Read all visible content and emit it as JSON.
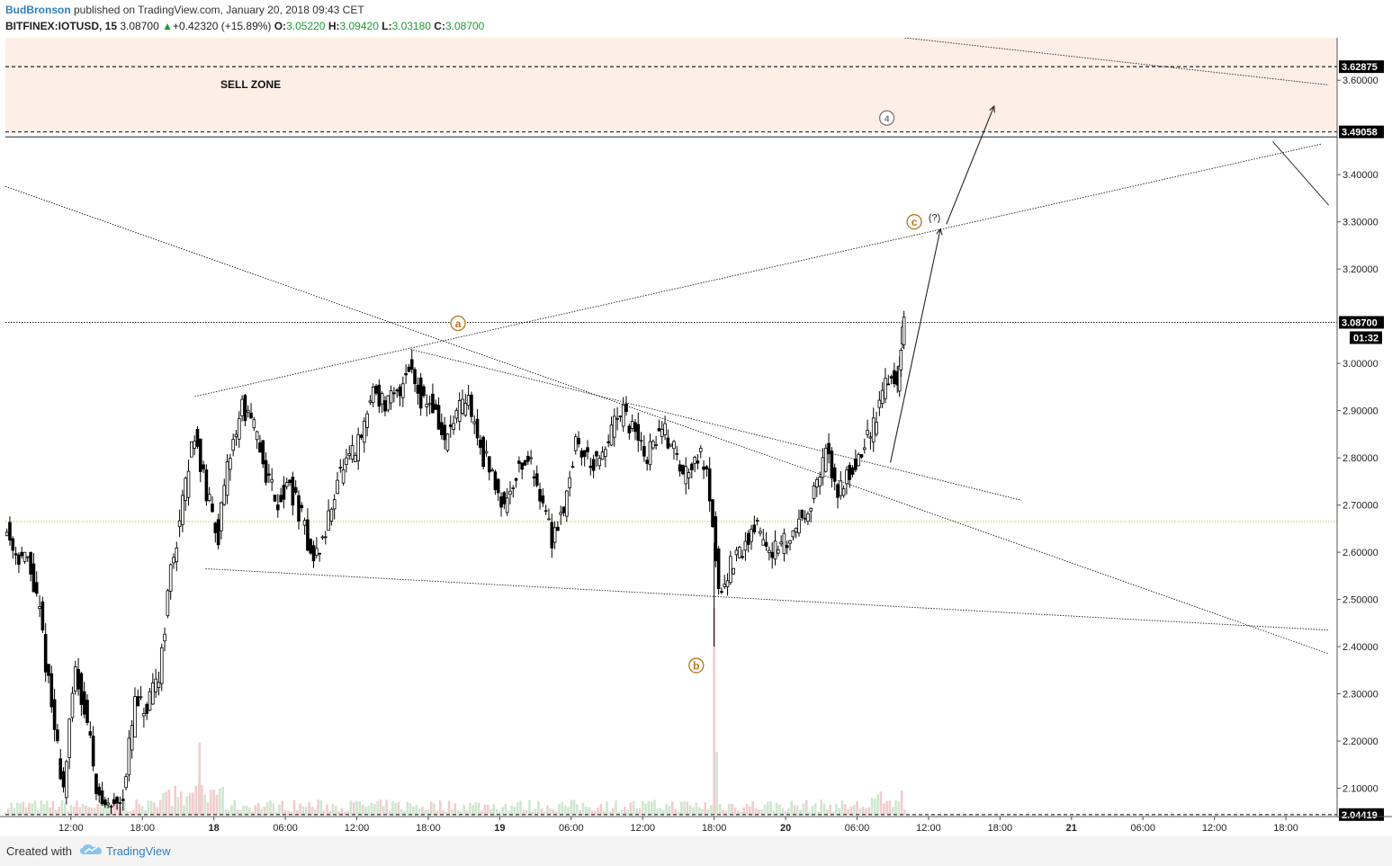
{
  "header": {
    "author": "BudBronson",
    "published": "published on TradingView.com, January 20, 2018 09:43 CET",
    "symbol": "BITFINEX:IOTUSD, 15",
    "last": "3.08700",
    "change_arrow": "▲",
    "change": "+0.42320 (+15.89%)",
    "o_label": "O:",
    "o_value": "3.05220",
    "h_label": "H:",
    "h_value": "3.09420",
    "l_label": "L:",
    "l_value": "3.03180",
    "c_label": "C:",
    "c_value": "3.08700"
  },
  "footer": {
    "created_with": "Created with",
    "brand": "TradingView",
    "logo_icon": "tradingview-cloud-icon"
  },
  "colors": {
    "bull_candle": "#ffffff",
    "bear_candle": "#000000",
    "sell_zone": "#fdefe6",
    "volume_up": "#cfe6cf",
    "volume_down": "#f2cccc",
    "wave_label": "#b8741a",
    "brand": "#2f7fc1"
  },
  "chart_data": {
    "type": "candlestick",
    "symbol": "BITFINEX:IOTUSD",
    "interval": "15",
    "y_axis": {
      "min": 2.04,
      "max": 3.69,
      "ticks": [
        "3.60000",
        "3.40000",
        "3.30000",
        "3.20000",
        "3.00000",
        "2.90000",
        "2.80000",
        "2.70000",
        "2.60000",
        "2.50000",
        "2.40000",
        "2.30000",
        "2.20000",
        "2.10000"
      ],
      "price_labels": [
        {
          "value": 3.62875,
          "text": "3.62875"
        },
        {
          "value": 3.49058,
          "text": "3.49058"
        },
        {
          "value": 3.087,
          "text": "3.08700"
        },
        {
          "value": 2.04419,
          "text": "2.04419"
        }
      ],
      "countdown": "01:32"
    },
    "x_axis": {
      "ticks": [
        {
          "t": 6,
          "label": "12:00"
        },
        {
          "t": 12,
          "label": "18:00"
        },
        {
          "t": 18,
          "label": "18"
        },
        {
          "t": 24,
          "label": "06:00"
        },
        {
          "t": 30,
          "label": "12:00"
        },
        {
          "t": 36,
          "label": "18:00"
        },
        {
          "t": 42,
          "label": "19"
        },
        {
          "t": 48,
          "label": "06:00"
        },
        {
          "t": 54,
          "label": "12:00"
        },
        {
          "t": 60,
          "label": "18:00"
        },
        {
          "t": 66,
          "label": "20"
        },
        {
          "t": 72,
          "label": "06:00"
        },
        {
          "t": 78,
          "label": "12:00"
        },
        {
          "t": 84,
          "label": "18:00"
        },
        {
          "t": 90,
          "label": "21"
        },
        {
          "t": 96,
          "label": "06:00"
        },
        {
          "t": 102,
          "label": "12:00"
        },
        {
          "t": 108,
          "label": "18:00"
        }
      ],
      "t_min": 0.5,
      "t_max": 112.3
    },
    "sell_zone": {
      "label": "SELL ZONE",
      "from": 3.49058,
      "to": 3.69
    },
    "horizontal_lines": [
      {
        "value": 3.62875,
        "style": "dashed"
      },
      {
        "value": 3.49058,
        "style": "dashed"
      },
      {
        "value": 3.48,
        "style": "solid"
      },
      {
        "value": 3.087,
        "style": "dotted"
      },
      {
        "value": 2.665,
        "style": "dotted",
        "color": "#e0b060"
      },
      {
        "value": 2.04419,
        "style": "dashed"
      }
    ],
    "trend_lines": [
      {
        "t1": 16.4,
        "p1": 2.93,
        "t2": 111.0,
        "p2": 3.465,
        "style": "dotted"
      },
      {
        "t1": 17.3,
        "p1": 2.565,
        "t2": 111.6,
        "p2": 2.435,
        "style": "dotted"
      },
      {
        "t1": 0.5,
        "p1": 3.375,
        "t2": 111.6,
        "p2": 2.385,
        "style": "dotted"
      },
      {
        "t1": 34.5,
        "p1": 3.03,
        "t2": 85.8,
        "p2": 2.71,
        "style": "dotted"
      },
      {
        "t1": 76.0,
        "p1": 3.69,
        "t2": 111.6,
        "p2": 3.59,
        "style": "dotted"
      },
      {
        "t1": 106.9,
        "p1": 3.47,
        "t2": 111.6,
        "p2": 3.335,
        "style": "solid"
      }
    ],
    "projection_arrows": [
      {
        "t1": 74.8,
        "p1": 2.79,
        "t2": 79.0,
        "p2": 3.285
      },
      {
        "t1": 79.5,
        "p1": 3.295,
        "t2": 83.5,
        "p2": 3.545
      }
    ],
    "annotations": [
      {
        "text": "a",
        "t": 38.5,
        "p": 3.085,
        "style": "circle-orange"
      },
      {
        "text": "b",
        "t": 58.5,
        "p": 2.36,
        "style": "circle-orange"
      },
      {
        "text": "c",
        "t": 76.8,
        "p": 3.3,
        "style": "circle-orange"
      },
      {
        "text": "(?)",
        "t": 78.5,
        "p": 3.31,
        "style": "plain"
      },
      {
        "text": "4",
        "t": 74.5,
        "p": 3.52,
        "style": "circle-gray"
      }
    ],
    "price_path": [
      [
        0.5,
        2.66
      ],
      [
        1.5,
        2.6
      ],
      [
        2.5,
        2.58
      ],
      [
        3.5,
        2.47
      ],
      [
        4.5,
        2.27
      ],
      [
        5.5,
        2.1
      ],
      [
        6.5,
        2.35
      ],
      [
        7.5,
        2.24
      ],
      [
        8.5,
        2.07
      ],
      [
        9.5,
        2.06
      ],
      [
        10.5,
        2.09
      ],
      [
        11.5,
        2.28
      ],
      [
        12.5,
        2.26
      ],
      [
        13.5,
        2.34
      ],
      [
        14.5,
        2.56
      ],
      [
        15.5,
        2.7
      ],
      [
        16.5,
        2.86
      ],
      [
        17.5,
        2.72
      ],
      [
        18.5,
        2.64
      ],
      [
        19.5,
        2.81
      ],
      [
        20.5,
        2.91
      ],
      [
        21.5,
        2.86
      ],
      [
        22.5,
        2.77
      ],
      [
        23.5,
        2.71
      ],
      [
        24.5,
        2.74
      ],
      [
        25.5,
        2.67
      ],
      [
        26.5,
        2.58
      ],
      [
        27.5,
        2.64
      ],
      [
        28.5,
        2.76
      ],
      [
        29.5,
        2.79
      ],
      [
        30.5,
        2.84
      ],
      [
        31.5,
        2.95
      ],
      [
        32.5,
        2.91
      ],
      [
        33.5,
        2.93
      ],
      [
        34.5,
        3.0
      ],
      [
        35.5,
        2.93
      ],
      [
        36.5,
        2.91
      ],
      [
        37.5,
        2.83
      ],
      [
        38.5,
        2.89
      ],
      [
        39.5,
        2.92
      ],
      [
        40.5,
        2.82
      ],
      [
        41.5,
        2.76
      ],
      [
        42.5,
        2.7
      ],
      [
        43.5,
        2.77
      ],
      [
        44.5,
        2.8
      ],
      [
        45.5,
        2.73
      ],
      [
        46.5,
        2.63
      ],
      [
        47.5,
        2.7
      ],
      [
        48.5,
        2.83
      ],
      [
        49.5,
        2.8
      ],
      [
        50.5,
        2.78
      ],
      [
        51.5,
        2.86
      ],
      [
        52.5,
        2.89
      ],
      [
        53.5,
        2.85
      ],
      [
        54.5,
        2.8
      ],
      [
        55.5,
        2.86
      ],
      [
        56.5,
        2.84
      ],
      [
        57.5,
        2.76
      ],
      [
        58.5,
        2.81
      ],
      [
        59.5,
        2.79
      ],
      [
        60.5,
        2.52
      ],
      [
        61.5,
        2.57
      ],
      [
        62.5,
        2.6
      ],
      [
        63.5,
        2.66
      ],
      [
        64.5,
        2.62
      ],
      [
        65.5,
        2.6
      ],
      [
        66.5,
        2.63
      ],
      [
        67.5,
        2.68
      ],
      [
        68.5,
        2.72
      ],
      [
        69.5,
        2.81
      ],
      [
        70.5,
        2.73
      ],
      [
        71.5,
        2.77
      ],
      [
        72.5,
        2.81
      ],
      [
        73.5,
        2.87
      ],
      [
        74.5,
        2.97
      ],
      [
        75.5,
        2.96
      ],
      [
        76.0,
        3.087
      ]
    ],
    "spike_low": {
      "t": 60.0,
      "p": 2.4
    },
    "volume_spike": {
      "t": 60.0
    }
  }
}
